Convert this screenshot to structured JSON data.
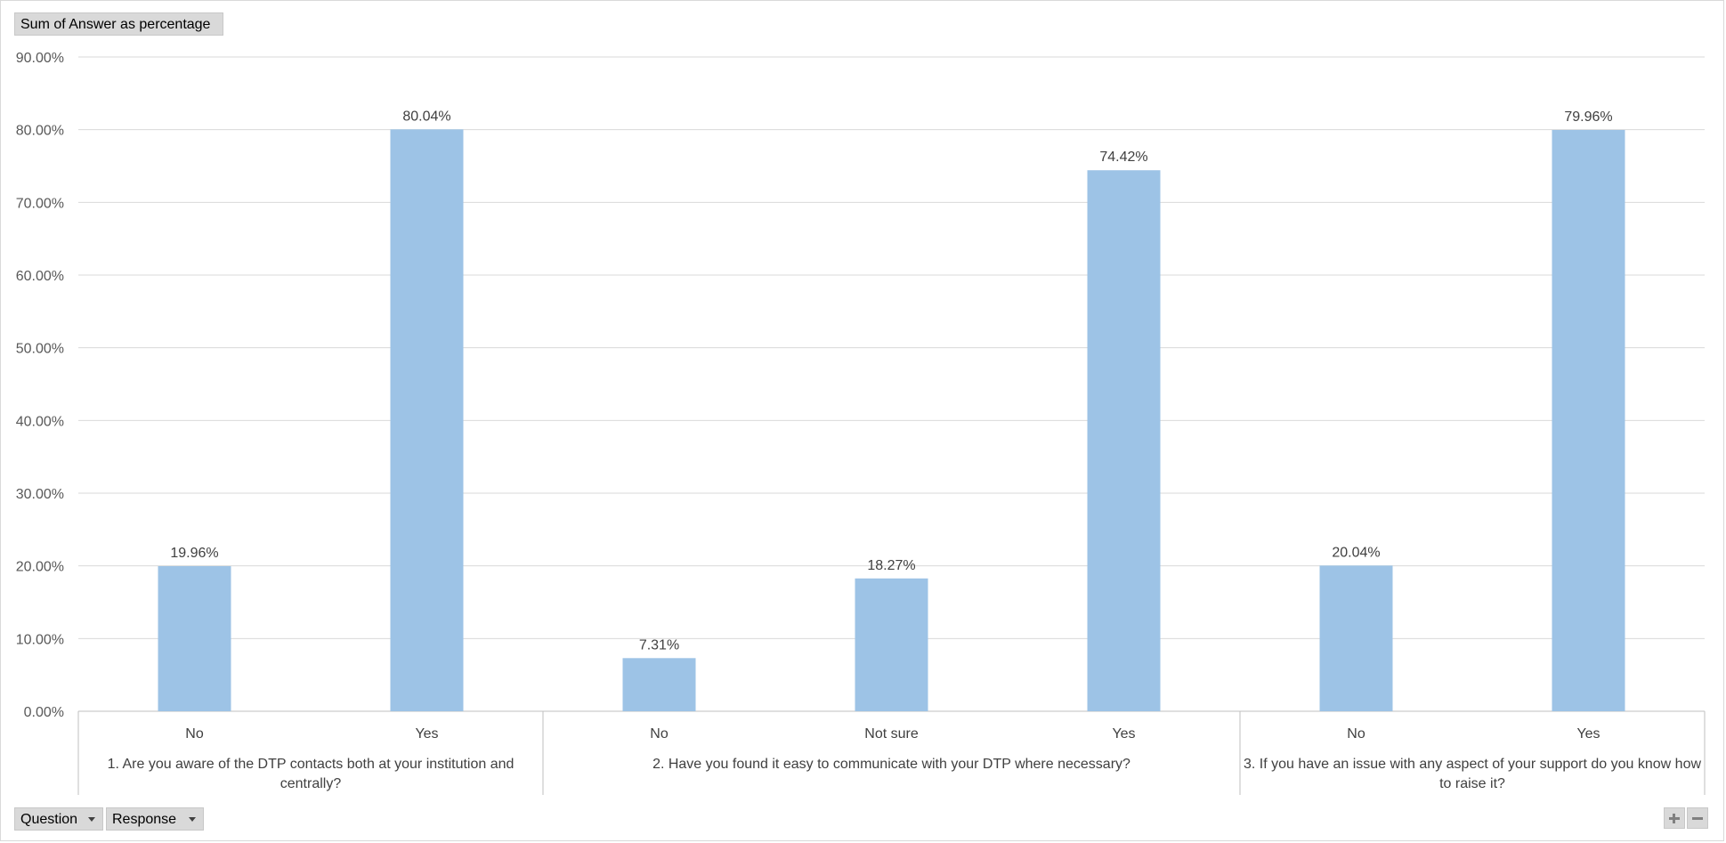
{
  "pivot": {
    "value_field_label": "Sum of Answer as percentage",
    "row_fields": [
      "Question",
      "Response"
    ]
  },
  "colors": {
    "bar": "#9dc3e6",
    "grid": "#d9d9d9",
    "axis": "#bfbfbf"
  },
  "icons": {
    "field_dropdown": "chevron-down-icon",
    "expand": "plus-icon",
    "collapse": "minus-icon"
  },
  "chart_data": {
    "type": "bar",
    "ylim": [
      0,
      0.9
    ],
    "ytick_labels": [
      "0.00%",
      "10.00%",
      "20.00%",
      "30.00%",
      "40.00%",
      "50.00%",
      "60.00%",
      "70.00%",
      "80.00%",
      "90.00%"
    ],
    "grid": true,
    "groups": [
      {
        "label": "1. Are you aware of the DTP contacts both at your institution and centrally?",
        "categories": [
          "No",
          "Yes"
        ]
      },
      {
        "label": "2. Have you found it easy to communicate with your DTP where necessary?",
        "categories": [
          "No",
          "Not sure",
          "Yes"
        ]
      },
      {
        "label": "3. If you have an issue with any aspect of your support do you know how to raise it?",
        "categories": [
          "No",
          "Yes"
        ]
      }
    ],
    "categories": [
      "No",
      "Yes",
      "No",
      "Not sure",
      "Yes",
      "No",
      "Yes"
    ],
    "values": [
      0.1996,
      0.8004,
      0.0731,
      0.1827,
      0.7442,
      0.2004,
      0.7996
    ],
    "data_labels": [
      "19.96%",
      "80.04%",
      "7.31%",
      "18.27%",
      "74.42%",
      "20.04%",
      "79.96%"
    ]
  }
}
